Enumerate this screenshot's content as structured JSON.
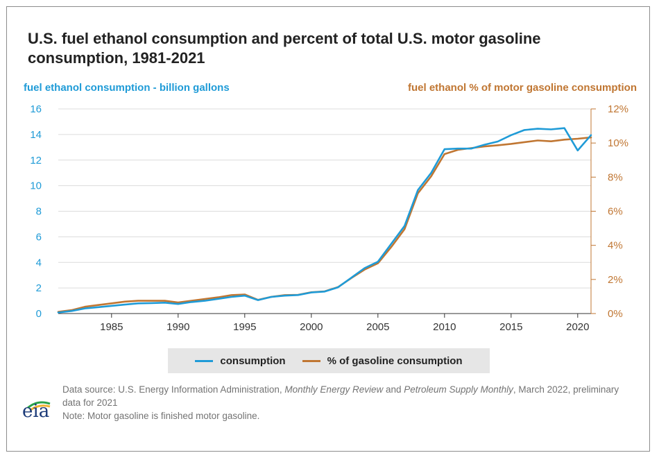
{
  "title": "U.S. fuel ethanol consumption and percent of total U.S. motor gasoline consumption, 1981-2021",
  "colors": {
    "consumption": "#1f9bd7",
    "percent": "#c07632",
    "grid": "#dcdcdc",
    "legend_bg": "#e6e6e6"
  },
  "chart_data": {
    "type": "line",
    "x": [
      1981,
      1982,
      1983,
      1984,
      1985,
      1986,
      1987,
      1988,
      1989,
      1990,
      1991,
      1992,
      1993,
      1994,
      1995,
      1996,
      1997,
      1998,
      1999,
      2000,
      2001,
      2002,
      2003,
      2004,
      2005,
      2006,
      2007,
      2008,
      2009,
      2010,
      2011,
      2012,
      2013,
      2014,
      2015,
      2016,
      2017,
      2018,
      2019,
      2020,
      2021
    ],
    "series": [
      {
        "name": "consumption",
        "axis": "left",
        "values": [
          0.08,
          0.2,
          0.4,
          0.5,
          0.6,
          0.7,
          0.8,
          0.82,
          0.85,
          0.75,
          0.9,
          1.0,
          1.15,
          1.3,
          1.4,
          1.05,
          1.3,
          1.4,
          1.45,
          1.65,
          1.72,
          2.05,
          2.8,
          3.55,
          4.05,
          5.45,
          6.85,
          9.65,
          11.0,
          12.85,
          12.9,
          12.9,
          13.2,
          13.45,
          13.95,
          14.35,
          14.45,
          14.4,
          14.5,
          12.75,
          13.95
        ]
      },
      {
        "name": "% of gasoline consumption",
        "axis": "right",
        "values": [
          0.1,
          0.2,
          0.4,
          0.5,
          0.6,
          0.7,
          0.75,
          0.75,
          0.75,
          0.65,
          0.75,
          0.85,
          0.95,
          1.08,
          1.12,
          0.8,
          0.98,
          1.08,
          1.1,
          1.25,
          1.3,
          1.55,
          2.08,
          2.58,
          2.95,
          3.9,
          4.95,
          7.05,
          8.05,
          9.35,
          9.6,
          9.7,
          9.8,
          9.87,
          9.95,
          10.05,
          10.15,
          10.1,
          10.2,
          10.25,
          10.33
        ]
      }
    ],
    "left_axis": {
      "label": "fuel ethanol consumption - billion gallons",
      "ylim": [
        0,
        16
      ],
      "ticks": [
        "0",
        "2",
        "4",
        "6",
        "8",
        "10",
        "12",
        "14",
        "16"
      ]
    },
    "right_axis": {
      "label": "fuel ethanol % of motor gasoline consumption",
      "ylim": [
        0,
        12
      ],
      "ticks": [
        "0%",
        "2%",
        "4%",
        "6%",
        "8%",
        "10%",
        "12%"
      ]
    },
    "xlim": [
      1981,
      2021
    ],
    "x_ticks": [
      "1985",
      "1990",
      "1995",
      "2000",
      "2005",
      "2010",
      "2015",
      "2020"
    ],
    "grid": true,
    "legend_position": "bottom"
  },
  "legend": {
    "item1": "consumption",
    "item2": "% of gasoline consumption"
  },
  "source": {
    "pre": "Data source: U.S. Energy Information Administration, ",
    "em1": "Monthly Energy Review",
    "mid": " and ",
    "em2": "Petroleum Supply Monthly",
    "post": ", March 2022, preliminary data for 2021",
    "note": "Note: Motor gasoline is finished motor gasoline."
  },
  "logo": {
    "text": "eia"
  }
}
